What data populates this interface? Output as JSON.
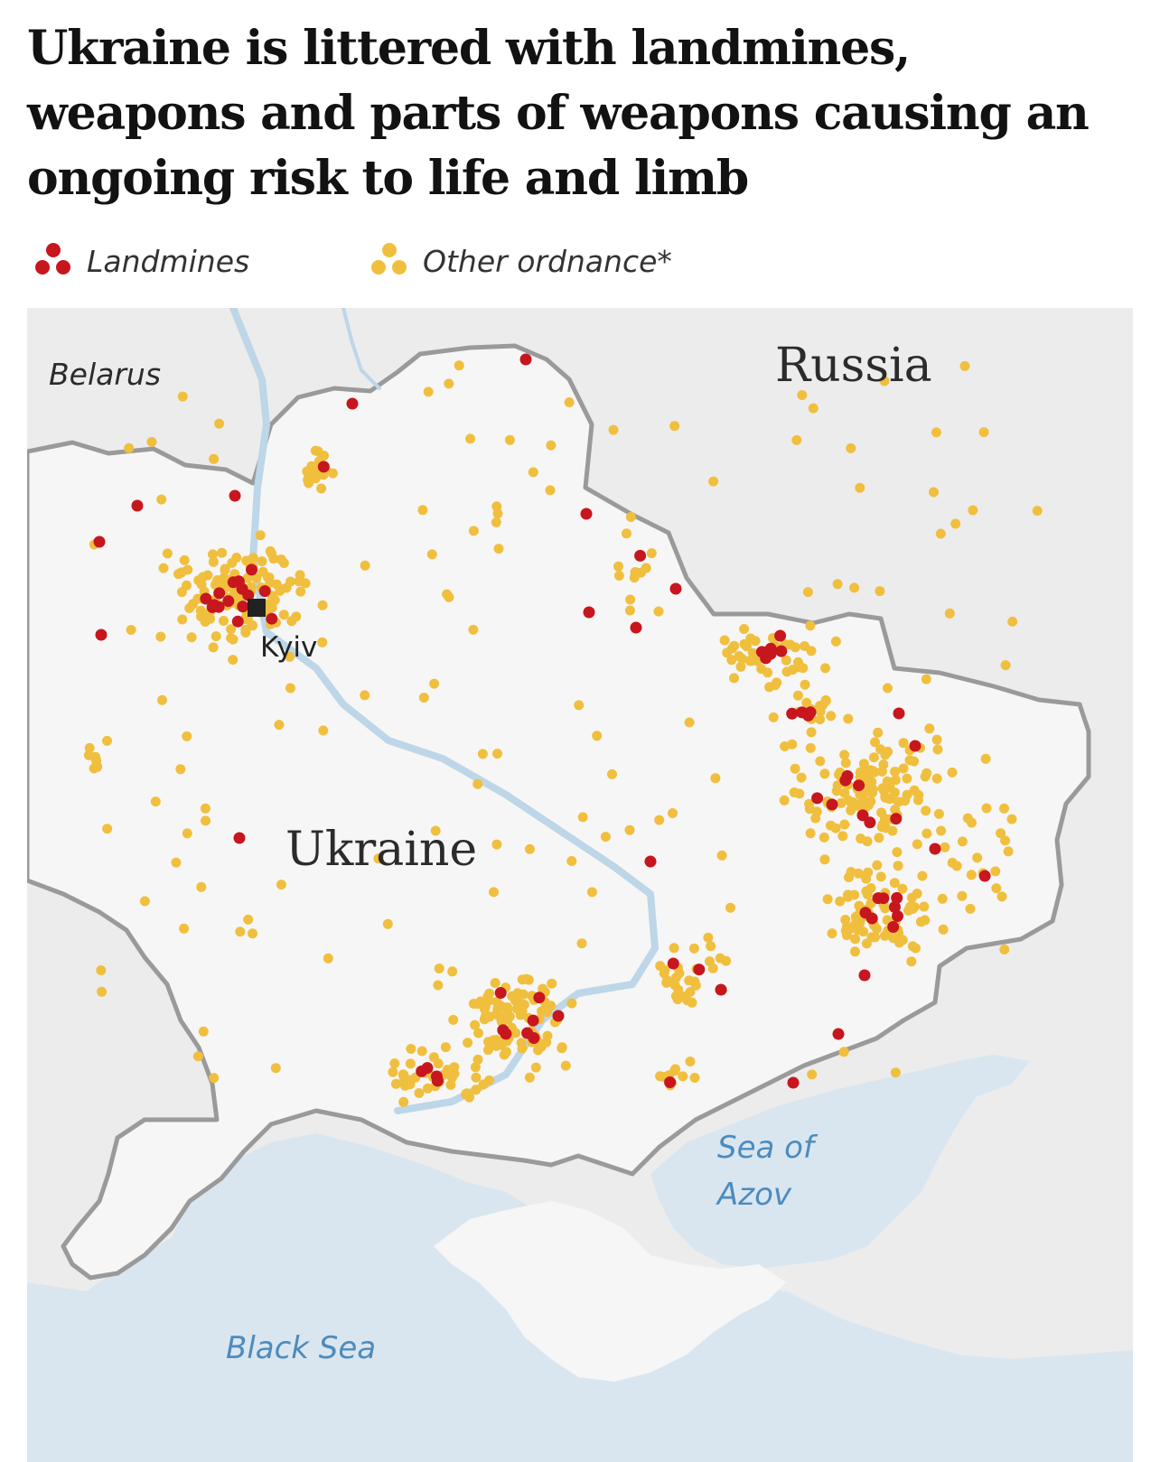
{
  "headline": "Ukraine is littered with landmines, weapons and parts of weapons causing an ongoing risk to life and limb",
  "legend": {
    "landmines": "Landmines",
    "other": "Other ordnance*"
  },
  "colors": {
    "landmine": "#c7161d",
    "other_ordnance": "#f0bf3e",
    "land_ukraine": "#f6f6f6",
    "land_neighbours": "#ececec",
    "water": "#d9e6f0",
    "border": "#9a9a9a",
    "sea_label": "#4d8bbd"
  },
  "map_labels": {
    "belarus": "Belarus",
    "russia": "Russia",
    "ukraine": "Ukraine",
    "kyiv": "Kyiv",
    "black_sea": "Black Sea",
    "sea_of_azov_line1": "Sea of",
    "sea_of_azov_line2": "Azov"
  },
  "icons": {
    "capital_marker": "square-marker-icon",
    "legend_landmine": "red-dot-cluster-icon",
    "legend_other": "yellow-dot-cluster-icon"
  }
}
